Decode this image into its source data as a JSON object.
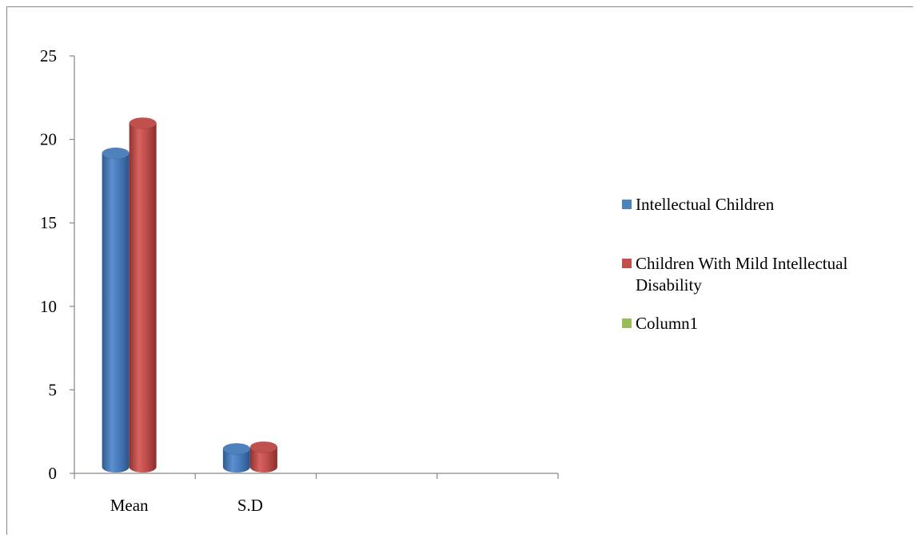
{
  "chart_data": {
    "type": "bar",
    "style": "3d-cylinder-clustered-column",
    "categories": [
      "Mean",
      "S.D",
      "",
      ""
    ],
    "series": [
      {
        "name": "Intellectual Children",
        "color": "#4F81BD",
        "values": [
          19.5,
          1.8,
          null,
          null
        ]
      },
      {
        "name": "Children With Mild Intellectual Disability",
        "color": "#C0504D",
        "values": [
          21.3,
          1.9,
          null,
          null
        ]
      },
      {
        "name": "Column1",
        "color": "#9BBB59",
        "values": [
          null,
          null,
          null,
          null
        ]
      }
    ],
    "y_ticks": [
      "0",
      "5",
      "10",
      "15",
      "20",
      "25"
    ],
    "ylim": [
      0,
      25
    ],
    "grid": false,
    "legend_position": "right"
  }
}
